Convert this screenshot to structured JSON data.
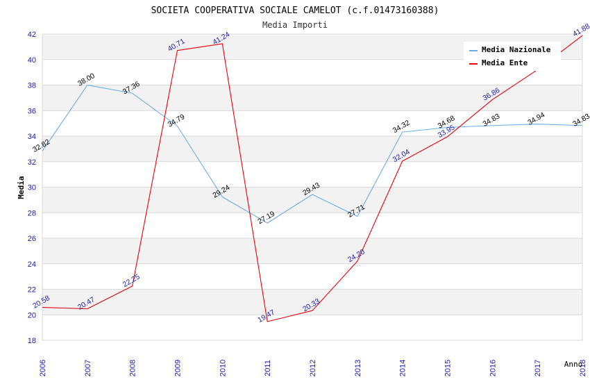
{
  "chart_data": {
    "type": "line",
    "title": "SOCIETA COOPERATIVA SOCIALE CAMELOT (c.f.01473160388)",
    "subtitle": "Media Importi",
    "xlabel": "Anno",
    "ylabel": "Media",
    "ylim": [
      18,
      42
    ],
    "ytick_step": 2,
    "categories": [
      "2006",
      "2007",
      "2008",
      "2009",
      "2010",
      "2011",
      "2012",
      "2013",
      "2014",
      "2015",
      "2016",
      "2017",
      "2018"
    ],
    "series": [
      {
        "name": "Media Nazionale",
        "color": "#6aaee6",
        "values": [
          32.82,
          38.0,
          37.36,
          34.79,
          29.24,
          27.19,
          29.43,
          27.71,
          34.32,
          34.68,
          34.83,
          34.94,
          34.83
        ],
        "labels": [
          "32.82",
          "38.00",
          "37.36",
          "34.79",
          "29.24",
          "27.19",
          "29.43",
          "27.71",
          "34.32",
          "34.68",
          "34.83",
          "34.94",
          "34.83"
        ]
      },
      {
        "name": "Media Ente",
        "color": "#e8000b",
        "values": [
          20.58,
          20.47,
          22.25,
          40.71,
          41.24,
          19.47,
          20.33,
          24.2,
          32.04,
          33.95,
          36.86,
          39.2,
          41.88
        ],
        "labels": [
          "20.58",
          "20.47",
          "22.25",
          "40.71",
          "41.24",
          "19.47",
          "20.33",
          "24.20",
          "32.04",
          "33.95",
          "36.86",
          "",
          "41.88"
        ]
      }
    ],
    "legend_position": "top-right",
    "grid": true
  }
}
